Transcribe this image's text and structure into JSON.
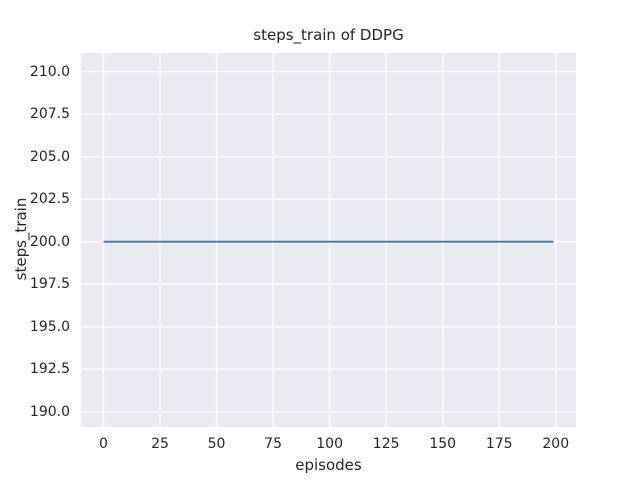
{
  "colors": {
    "page_bg": "#ffffff",
    "axes_bg": "#eaeaf2",
    "grid": "#ffffff",
    "line": "#4c72b0",
    "text": "#262626"
  },
  "chart_data": {
    "type": "line",
    "title": "steps_train of DDPG",
    "xlabel": "episodes",
    "ylabel": "steps_train",
    "xlim": [
      -9.95,
      208.95
    ],
    "ylim": [
      189.1,
      211.1
    ],
    "xticks": [
      0,
      25,
      50,
      75,
      100,
      125,
      150,
      175,
      200
    ],
    "xtick_labels": [
      "0",
      "25",
      "50",
      "75",
      "100",
      "125",
      "150",
      "175",
      "200"
    ],
    "yticks": [
      190.0,
      192.5,
      195.0,
      197.5,
      200.0,
      202.5,
      205.0,
      207.5,
      210.0
    ],
    "ytick_labels": [
      "190.0",
      "192.5",
      "195.0",
      "197.5",
      "200.0",
      "202.5",
      "205.0",
      "207.5",
      "210.0"
    ],
    "grid": true,
    "legend": null,
    "series": [
      {
        "name": "steps_train",
        "color": "#4c72b0",
        "note": "constant value 200 for every episode from 0 to 199",
        "constant_y": 200,
        "x_range": [
          0,
          199
        ],
        "points": [
          [
            0,
            200
          ],
          [
            199,
            200
          ]
        ]
      }
    ]
  }
}
